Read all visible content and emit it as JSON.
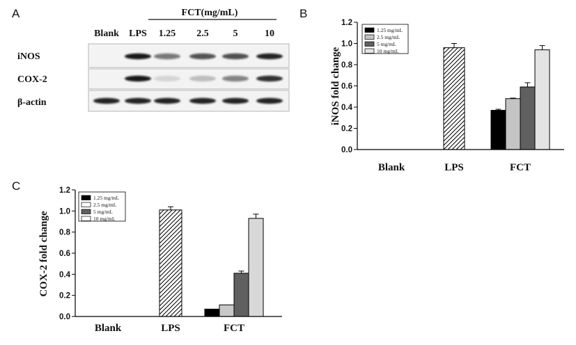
{
  "panel_labels": {
    "a": "A",
    "b": "B",
    "c": "C"
  },
  "blot": {
    "header": "FCT(mg/mL)",
    "lanes": [
      "Blank",
      "LPS",
      "1.25",
      "2.5",
      "5",
      "10"
    ],
    "rows": [
      {
        "label": "iNOS",
        "band_intensity": [
          0,
          0.95,
          0.55,
          0.7,
          0.72,
          0.9
        ]
      },
      {
        "label": "COX-2",
        "band_intensity": [
          0,
          0.95,
          0.12,
          0.22,
          0.5,
          0.85
        ]
      },
      {
        "label": "β-actin",
        "band_intensity": [
          0.9,
          0.9,
          0.9,
          0.9,
          0.9,
          0.9
        ]
      }
    ]
  },
  "chart_data": [
    {
      "type": "bar",
      "ylabel": "iNOS fold change",
      "categories": [
        "Blank",
        "LPS",
        "FCT"
      ],
      "ylim": [
        0,
        1.2
      ],
      "yticks": [
        "0.0",
        "0.2",
        "0.4",
        "0.6",
        "0.8",
        "1.0",
        "1.2"
      ],
      "grid": false,
      "legend_position": "top-left",
      "series": [
        {
          "hatched": true,
          "color": "#ffffff",
          "values": [
            null,
            0.96,
            null
          ],
          "errors": [
            null,
            0.04,
            null
          ]
        },
        {
          "name": "1.25 mg/mL",
          "color": "#000000",
          "swatch": "#000000",
          "values": [
            null,
            null,
            0.37
          ],
          "errors": [
            null,
            null,
            0.01
          ]
        },
        {
          "name": "2.5 mg/mL",
          "color": "#c4c4c4",
          "swatch": "#c4c4c4",
          "values": [
            null,
            null,
            0.48
          ],
          "errors": [
            null,
            null,
            0.005
          ]
        },
        {
          "name": "5 mg/mL",
          "color": "#606060",
          "swatch": "#606060",
          "values": [
            null,
            null,
            0.59
          ],
          "errors": [
            null,
            null,
            0.04
          ]
        },
        {
          "name": "10 mg/mL",
          "color": "#e4e4e4",
          "swatch": "#e4e4e4",
          "values": [
            null,
            null,
            0.94
          ],
          "errors": [
            null,
            null,
            0.04
          ]
        }
      ]
    },
    {
      "type": "bar",
      "ylabel": "COX-2 fold change",
      "categories": [
        "Blank",
        "LPS",
        "FCT"
      ],
      "ylim": [
        0,
        1.2
      ],
      "yticks": [
        "0.0",
        "0.2",
        "0.4",
        "0.6",
        "0.8",
        "1.0",
        "1.2"
      ],
      "grid": false,
      "legend_position": "top-left",
      "series": [
        {
          "hatched": true,
          "color": "#ffffff",
          "values": [
            null,
            1.01,
            null
          ],
          "errors": [
            null,
            0.03,
            null
          ]
        },
        {
          "name": "1.25 mg/mL",
          "color": "#000000",
          "swatch": "#000000",
          "values": [
            null,
            null,
            0.07
          ],
          "errors": [
            null,
            null,
            0
          ]
        },
        {
          "name": "2.5 mg/mL",
          "color": "#c8c8c8",
          "swatch": "#ffffff",
          "values": [
            null,
            null,
            0.11
          ],
          "errors": [
            null,
            null,
            0
          ]
        },
        {
          "name": "5 mg/mL",
          "color": "#606060",
          "swatch": "#606060",
          "values": [
            null,
            null,
            0.41
          ],
          "errors": [
            null,
            null,
            0.02
          ]
        },
        {
          "name": "10 mg/mL",
          "color": "#d8d8d8",
          "swatch": "#ffffff",
          "values": [
            null,
            null,
            0.93
          ],
          "errors": [
            null,
            null,
            0.04
          ]
        }
      ]
    }
  ]
}
